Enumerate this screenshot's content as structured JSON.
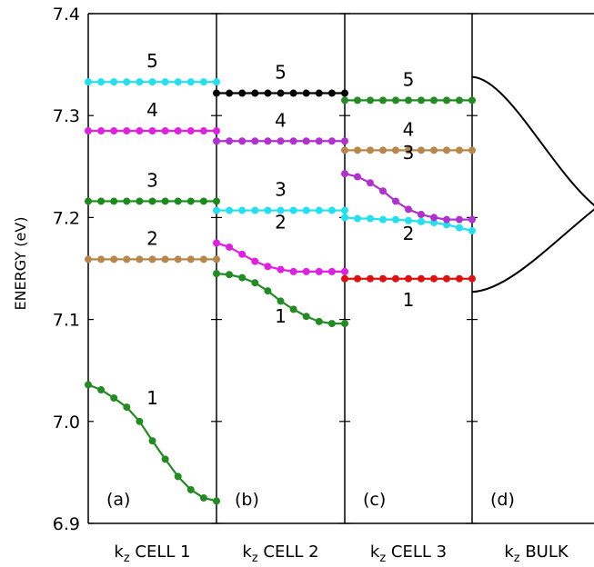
{
  "chart_data": {
    "type": "line",
    "ylabel": "ENERGY (eV)",
    "ylim": [
      6.9,
      7.4
    ],
    "yticks": [
      "6.9",
      "7.0",
      "7.1",
      "7.2",
      "7.3",
      "7.4"
    ],
    "grid": false,
    "panels": [
      {
        "id": "a",
        "tag": "(a)",
        "xlabel": {
          "k": "k",
          "sub": "z",
          "rest": " CELL 1"
        },
        "series": [
          {
            "label": "1",
            "color": "#228b22",
            "markers": true,
            "y": [
              7.036,
              7.031,
              7.023,
              7.014,
              7.0,
              6.981,
              6.963,
              6.946,
              6.933,
              6.925,
              6.922
            ]
          },
          {
            "label": "2",
            "color": "#b8864b",
            "markers": true,
            "y": [
              7.159
            ]
          },
          {
            "label": "3",
            "color": "#1a8a1a",
            "markers": true,
            "y": [
              7.216
            ]
          },
          {
            "label": "4",
            "color": "#e020e0",
            "markers": true,
            "y": [
              7.285
            ]
          },
          {
            "label": "5",
            "color": "#22e0f0",
            "markers": true,
            "y": [
              7.333
            ]
          }
        ]
      },
      {
        "id": "b",
        "tag": "(b)",
        "xlabel": {
          "k": "k",
          "sub": "z",
          "rest": " CELL 2"
        },
        "series": [
          {
            "label": "1",
            "color": "#228b22",
            "markers": true,
            "y": [
              7.145,
              7.144,
              7.141,
              7.136,
              7.128,
              7.118,
              7.11,
              7.103,
              7.098,
              7.096,
              7.096
            ]
          },
          {
            "label": "2",
            "color": "#e020e0",
            "markers": true,
            "y": [
              7.175,
              7.171,
              7.164,
              7.157,
              7.152,
              7.149,
              7.147,
              7.147,
              7.147,
              7.147,
              7.147
            ]
          },
          {
            "label": "3",
            "color": "#22e0f0",
            "markers": true,
            "y": [
              7.207
            ]
          },
          {
            "label": "4",
            "color": "#b030d0",
            "markers": true,
            "y": [
              7.275
            ]
          },
          {
            "label": "5",
            "color": "#000000",
            "markers": true,
            "y": [
              7.322
            ]
          }
        ]
      },
      {
        "id": "c",
        "tag": "(c)",
        "xlabel": {
          "k": "k",
          "sub": "z",
          "rest": " CELL 3"
        },
        "series": [
          {
            "label": "1",
            "color": "#e01010",
            "markers": true,
            "y": [
              7.14
            ]
          },
          {
            "label": "2",
            "color": "#22e0f0",
            "markers": true,
            "y": [
              7.2,
              7.199,
              7.199,
              7.198,
              7.198,
              7.197,
              7.196,
              7.195,
              7.193,
              7.19,
              7.187
            ]
          },
          {
            "label": "3",
            "color": "#b030d0",
            "markers": true,
            "y": [
              7.243,
              7.24,
              7.234,
              7.226,
              7.216,
              7.208,
              7.203,
              7.2,
              7.198,
              7.198,
              7.198
            ]
          },
          {
            "label": "4",
            "color": "#b8864b",
            "markers": true,
            "y": [
              7.266
            ]
          },
          {
            "label": "5",
            "color": "#228b22",
            "markers": true,
            "y": [
              7.315
            ]
          }
        ]
      },
      {
        "id": "d",
        "tag": "(d)",
        "xlabel": {
          "k": "k",
          "sub": "z",
          "rest": " BULK"
        },
        "bulk_band": {
          "color": "#000000",
          "upper": {
            "y_start": 7.338,
            "y_end": 7.21
          },
          "lower": {
            "y_start": 7.127,
            "y_end": 7.21
          }
        }
      }
    ]
  }
}
